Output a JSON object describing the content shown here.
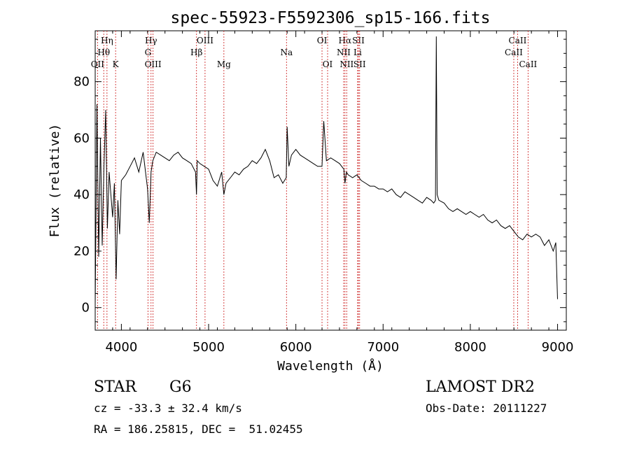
{
  "chart_data": {
    "type": "line",
    "title": "spec-55923-F5592306_sp15-166.fits",
    "xlabel": "Wavelength (Å)",
    "ylabel": "Flux (relative)",
    "xlim": [
      3700,
      9100
    ],
    "ylim": [
      -8,
      98
    ],
    "xticks": [
      4000,
      5000,
      6000,
      7000,
      8000,
      9000
    ],
    "yticks": [
      0,
      20,
      40,
      60,
      80
    ],
    "grid": false,
    "line_color": "#000000",
    "marker_color": "#d03030",
    "series": [
      {
        "values_note": "",
        "x": [
          3700,
          3720,
          3740,
          3760,
          3780,
          3800,
          3820,
          3840,
          3860,
          3880,
          3900,
          3920,
          3940,
          3960,
          3980,
          4000,
          4050,
          4100,
          4150,
          4200,
          4250,
          4300,
          4320,
          4340,
          4360,
          4400,
          4450,
          4500,
          4550,
          4600,
          4650,
          4700,
          4750,
          4800,
          4850,
          4861,
          4870,
          4900,
          4950,
          5000,
          5050,
          5100,
          5150,
          5175,
          5200,
          5250,
          5300,
          5350,
          5400,
          5450,
          5500,
          5550,
          5600,
          5650,
          5700,
          5750,
          5800,
          5850,
          5890,
          5900,
          5920,
          5950,
          6000,
          6050,
          6100,
          6150,
          6200,
          6250,
          6300,
          6320,
          6350,
          6400,
          6450,
          6500,
          6550,
          6563,
          6580,
          6600,
          6650,
          6700,
          6750,
          6800,
          6850,
          6900,
          6950,
          7000,
          7050,
          7100,
          7150,
          7200,
          7250,
          7300,
          7350,
          7400,
          7450,
          7500,
          7550,
          7580,
          7600,
          7610,
          7620,
          7640,
          7700,
          7750,
          7800,
          7850,
          7900,
          7950,
          8000,
          8050,
          8100,
          8150,
          8200,
          8250,
          8300,
          8350,
          8400,
          8450,
          8500,
          8550,
          8600,
          8650,
          8700,
          8750,
          8800,
          8850,
          8900,
          8950,
          8980,
          9000
        ],
        "y": [
          1,
          72,
          18,
          60,
          22,
          50,
          70,
          28,
          48,
          40,
          32,
          44,
          10,
          38,
          26,
          45,
          47,
          50,
          53,
          48,
          55,
          42,
          30,
          48,
          52,
          55,
          54,
          53,
          52,
          54,
          55,
          53,
          52,
          51,
          48,
          40,
          52,
          51,
          50,
          49,
          45,
          43,
          48,
          40,
          44,
          46,
          48,
          47,
          49,
          50,
          52,
          51,
          53,
          56,
          52,
          46,
          47,
          44,
          46,
          64,
          50,
          54,
          56,
          54,
          53,
          52,
          51,
          50,
          50,
          66,
          52,
          53,
          52,
          51,
          49,
          44,
          48,
          47,
          46,
          47,
          45,
          44,
          43,
          43,
          42,
          42,
          41,
          42,
          40,
          39,
          41,
          40,
          39,
          38,
          37,
          39,
          38,
          37,
          38,
          96,
          40,
          38,
          37,
          35,
          34,
          35,
          34,
          33,
          34,
          33,
          32,
          33,
          31,
          30,
          31,
          29,
          28,
          29,
          27,
          25,
          24,
          26,
          25,
          26,
          25,
          22,
          24,
          20,
          23,
          3
        ]
      }
    ],
    "lines": [
      {
        "name": "OII",
        "wl": 3727,
        "row": 3
      },
      {
        "name": "Hθ",
        "wl": 3798,
        "row": 2
      },
      {
        "name": "Hη",
        "wl": 3835,
        "row": 1
      },
      {
        "name": "K",
        "wl": 3934,
        "row": 3
      },
      {
        "name": "Hγ",
        "wl": 4340,
        "row": 1
      },
      {
        "name": "G",
        "wl": 4305,
        "row": 2
      },
      {
        "name": "OIII",
        "wl": 4363,
        "row": 3
      },
      {
        "name": "Hβ",
        "wl": 4861,
        "row": 2
      },
      {
        "name": "OIII",
        "wl": 4959,
        "row": 1
      },
      {
        "name": "Mg",
        "wl": 5175,
        "row": 3
      },
      {
        "name": "Na",
        "wl": 5893,
        "row": 2
      },
      {
        "name": "OI",
        "wl": 6300,
        "row": 1
      },
      {
        "name": "OI",
        "wl": 6364,
        "row": 3
      },
      {
        "name": "Hα",
        "wl": 6563,
        "row": 1
      },
      {
        "name": "NII",
        "wl": 6548,
        "row": 2
      },
      {
        "name": "NII",
        "wl": 6583,
        "row": 3
      },
      {
        "name": "SII",
        "wl": 6717,
        "row": 1
      },
      {
        "name": "Li",
        "wl": 6708,
        "row": 2
      },
      {
        "name": "SII",
        "wl": 6731,
        "row": 3
      },
      {
        "name": "CaII",
        "wl": 8542,
        "row": 1
      },
      {
        "name": "CaII",
        "wl": 8498,
        "row": 2
      },
      {
        "name": "CaII",
        "wl": 8662,
        "row": 3
      }
    ]
  },
  "info": {
    "class_label": "STAR",
    "subclass": "G6",
    "redshift": "cz = -33.3 ± 32.4 km/s",
    "coords": "RA = 186.25815, DEC =  51.02455",
    "survey": "LAMOST DR2",
    "obs_date": "Obs-Date: 20111227"
  }
}
